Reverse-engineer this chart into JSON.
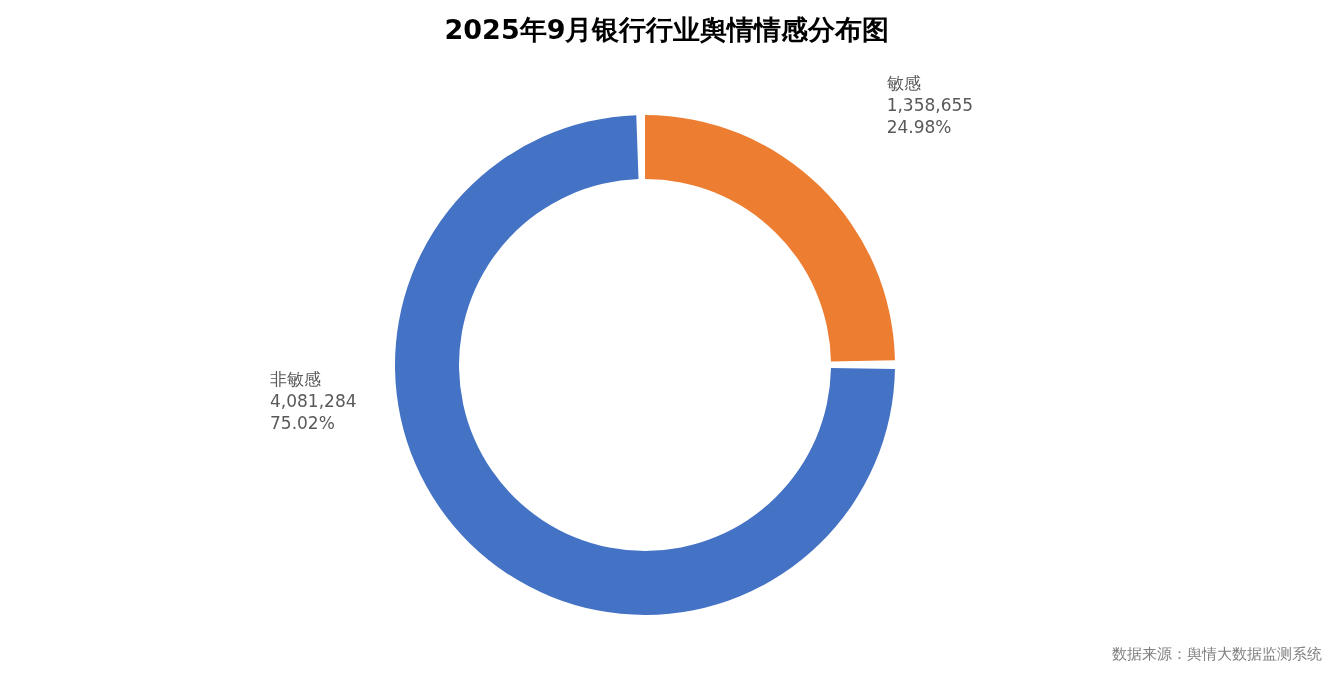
{
  "chart_data": {
    "type": "donut",
    "title": "2025年9月银行行业舆情情感分布图",
    "categories": [
      "敏感",
      "非敏感"
    ],
    "values": [
      1358655,
      4081284
    ],
    "colors": [
      "#ed7d31",
      "#4472c4"
    ],
    "value_labels": [
      "1,358,655\n24.98%",
      "4,081,284\n75.02%"
    ],
    "annotations": [
      "数据来源：舆情大数据监测系统"
    ]
  }
}
